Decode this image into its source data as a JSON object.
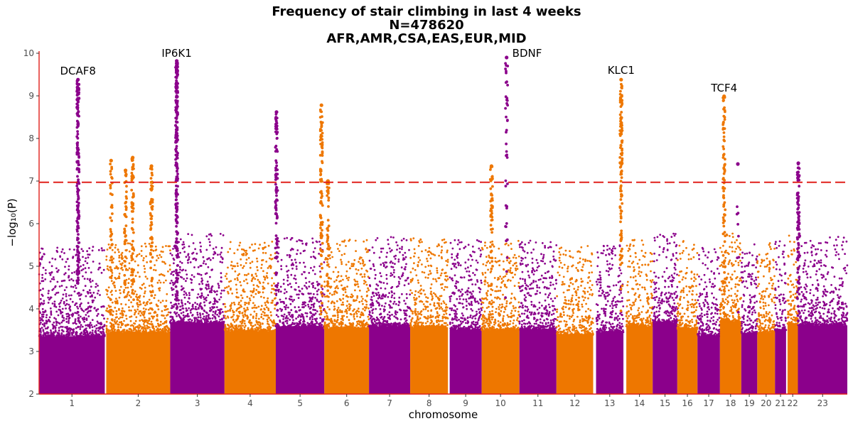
{
  "chart_data": {
    "type": "scatter",
    "subtype": "manhattan",
    "title": "Frequency of stair climbing in last 4 weeks",
    "subtitle_n": "N=478620",
    "subtitle_pops": "AFR,AMR,CSA,EAS,EUR,MID",
    "xlabel": "chromosome",
    "ylabel": "−log₁₀(P)",
    "ylim": [
      2,
      10.05
    ],
    "yticks": [
      2,
      3,
      4,
      5,
      6,
      7,
      8,
      9,
      10
    ],
    "threshold": 6.97,
    "colors": {
      "odd": "#8b008b",
      "even": "#ee7700",
      "threshold": "#e0201b",
      "axis": "#e0201b"
    },
    "chromosomes": [
      {
        "label": "1",
        "start": 0,
        "end": 45.6
      },
      {
        "label": "2",
        "start": 46.6,
        "end": 91.0
      },
      {
        "label": "3",
        "start": 91.0,
        "end": 128.7
      },
      {
        "label": "4",
        "start": 128.7,
        "end": 164.3
      },
      {
        "label": "5",
        "start": 164.3,
        "end": 198.0
      },
      {
        "label": "6",
        "start": 198.0,
        "end": 229.0
      },
      {
        "label": "7",
        "start": 229.0,
        "end": 257.6
      },
      {
        "label": "8",
        "start": 257.6,
        "end": 283.8
      },
      {
        "label": "9",
        "start": 285.0,
        "end": 307.2
      },
      {
        "label": "10",
        "start": 307.2,
        "end": 333.4
      },
      {
        "label": "11",
        "start": 333.4,
        "end": 359.1
      },
      {
        "label": "12",
        "start": 359.1,
        "end": 384.6
      },
      {
        "label": "13",
        "start": 386.6,
        "end": 405.6
      },
      {
        "label": "14",
        "start": 407.6,
        "end": 425.9
      },
      {
        "label": "15",
        "start": 425.9,
        "end": 443.0
      },
      {
        "label": "16",
        "start": 443.0,
        "end": 457.0
      },
      {
        "label": "17",
        "start": 457.0,
        "end": 472.6
      },
      {
        "label": "18",
        "start": 472.6,
        "end": 487.4
      },
      {
        "label": "19",
        "start": 487.4,
        "end": 498.5
      },
      {
        "label": "20",
        "start": 498.5,
        "end": 510.8
      },
      {
        "label": "21",
        "start": 510.8,
        "end": 518.5
      },
      {
        "label": "22",
        "start": 519.5,
        "end": 526.7
      },
      {
        "label": "23",
        "start": 526.7,
        "end": 561.0
      }
    ],
    "xlim": [
      0,
      561.0
    ],
    "peaks": [
      {
        "chrom": 1,
        "pos": 27.0,
        "top": 9.38,
        "cluster": 180
      },
      {
        "chrom": 2,
        "pos": 50.0,
        "top": 7.48,
        "cluster": 40
      },
      {
        "chrom": 2,
        "pos": 60.0,
        "top": 7.25,
        "cluster": 40
      },
      {
        "chrom": 2,
        "pos": 65.0,
        "top": 7.55,
        "cluster": 60
      },
      {
        "chrom": 2,
        "pos": 78.0,
        "top": 7.35,
        "cluster": 60
      },
      {
        "chrom": 3,
        "pos": 95.5,
        "top": 9.82,
        "cluster": 220
      },
      {
        "chrom": 5,
        "pos": 164.8,
        "top": 8.62,
        "cluster": 90
      },
      {
        "chrom": 6,
        "pos": 196.0,
        "top": 8.78,
        "cluster": 90
      },
      {
        "chrom": 6,
        "pos": 200.5,
        "top": 7.0,
        "cluster": 40
      },
      {
        "chrom": 10,
        "pos": 314.0,
        "top": 7.35,
        "cluster": 50
      },
      {
        "chrom": 11,
        "pos": 324.5,
        "top": 9.9,
        "cluster": 40
      },
      {
        "chrom": 14,
        "pos": 404.0,
        "top": 9.38,
        "cluster": 120
      },
      {
        "chrom": 18,
        "pos": 475.5,
        "top": 8.99,
        "cluster": 90
      },
      {
        "chrom": 19,
        "pos": 485.0,
        "top": 7.4,
        "cluster": 8
      },
      {
        "chrom": 23,
        "pos": 527.0,
        "top": 7.42,
        "cluster": 90
      }
    ],
    "annotations": [
      {
        "gene": "DCAF8",
        "pos": 27.0,
        "y": 9.5
      },
      {
        "gene": "IP6K1",
        "pos": 95.5,
        "y": 9.92
      },
      {
        "gene": "BDNF",
        "pos": 324.5,
        "y": 9.92,
        "anchor": "start"
      },
      {
        "gene": "KLC1",
        "pos": 404.0,
        "y": 9.52
      },
      {
        "gene": "TCF4",
        "pos": 475.5,
        "y": 9.1
      }
    ]
  }
}
